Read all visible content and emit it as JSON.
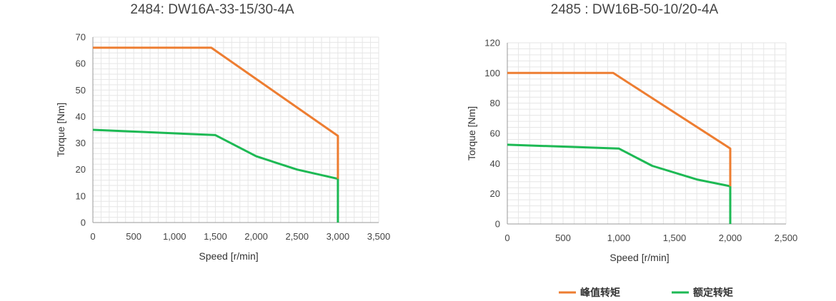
{
  "colors": {
    "peak": "#ED7D31",
    "rated": "#1DB954",
    "grid": "#e6e6e6",
    "axis": "#999999"
  },
  "legend": {
    "peak": "峰值转矩",
    "rated": "额定转矩"
  },
  "chart_data": [
    {
      "type": "line",
      "title": "2484: DW16A-33-15/30-4A",
      "xlabel": "Speed [r/min]",
      "ylabel": "Torque [Nm]",
      "xlim": [
        0,
        3500
      ],
      "ylim": [
        0,
        70
      ],
      "xticks": [
        0,
        500,
        1000,
        1500,
        2000,
        2500,
        3000,
        3500
      ],
      "yticks": [
        0,
        10,
        20,
        30,
        40,
        50,
        60,
        70
      ],
      "xtick_labels": [
        "0",
        "500",
        "1,000",
        "1,500",
        "2,000",
        "2,500",
        "3,000",
        "3,500"
      ],
      "ytick_labels": [
        "0",
        "10",
        "20",
        "30",
        "40",
        "50",
        "60",
        "70"
      ],
      "grid": true,
      "series": [
        {
          "name": "峰值转矩",
          "x": [
            0,
            1450,
            3000,
            3000
          ],
          "y": [
            66,
            66,
            32.7,
            16.5
          ]
        },
        {
          "name": "额定转矩",
          "x": [
            0,
            1500,
            2000,
            2500,
            3000,
            3000
          ],
          "y": [
            35,
            33,
            25,
            20,
            16.5,
            0
          ]
        }
      ]
    },
    {
      "type": "line",
      "title": "2485 : DW16B-50-10/20-4A",
      "xlabel": "Speed [r/min]",
      "ylabel": "Torque [Nm]",
      "xlim": [
        0,
        2500
      ],
      "ylim": [
        0,
        120
      ],
      "xticks": [
        0,
        500,
        1000,
        1500,
        2000,
        2500
      ],
      "yticks": [
        0,
        20,
        40,
        60,
        80,
        100,
        120
      ],
      "xtick_labels": [
        "0",
        "500",
        "1,000",
        "1,500",
        "2,000",
        "2,500"
      ],
      "ytick_labels": [
        "0",
        "20",
        "40",
        "60",
        "80",
        "100",
        "120"
      ],
      "grid": true,
      "series": [
        {
          "name": "峰值转矩",
          "x": [
            0,
            950,
            2000,
            2000
          ],
          "y": [
            100,
            100,
            50,
            25
          ]
        },
        {
          "name": "额定转矩",
          "x": [
            0,
            1000,
            1300,
            1700,
            2000,
            2000
          ],
          "y": [
            52.5,
            50,
            38.5,
            29.5,
            25,
            0
          ]
        }
      ]
    }
  ]
}
